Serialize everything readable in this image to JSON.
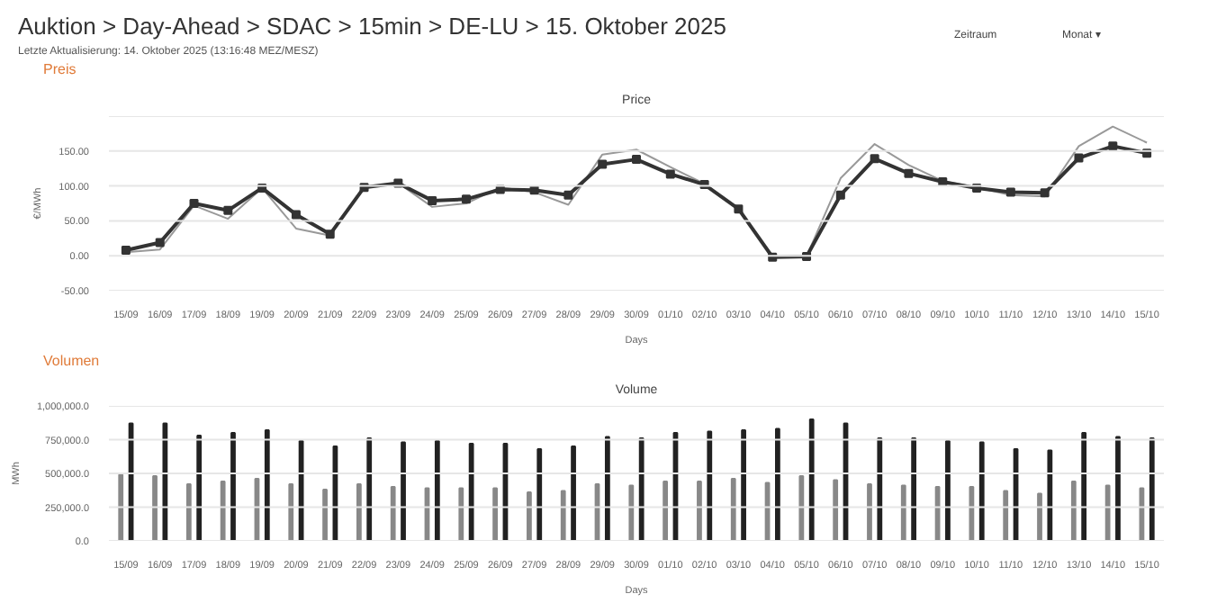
{
  "chart_data": [
    {
      "type": "other",
      "title": "Auktion > Day-Ahead > SDAC > 15min > DE-LU > 15. Oktober 2025",
      "subtitle": "Letzte Aktualisierung: 14. Oktober 2025 (13:16:48 MEZ/MESZ)",
      "annotations": [
        "Zeitraum",
        "Monat ▾"
      ]
    },
    {
      "type": "line",
      "title": "Price",
      "annotations": [
        "Preis"
      ],
      "xlabel": "Days",
      "ylabel": "€/MWh",
      "grid": "y",
      "categories": [
        "15/09",
        "16/09",
        "17/09",
        "18/09",
        "19/09",
        "20/09",
        "21/09",
        "22/09",
        "23/09",
        "24/09",
        "25/09",
        "26/09",
        "27/09",
        "28/09",
        "29/09",
        "30/09",
        "01/10",
        "02/10",
        "03/10",
        "04/10",
        "05/10",
        "06/10",
        "07/10",
        "08/10",
        "09/10",
        "10/10",
        "11/10",
        "12/10",
        "13/10",
        "14/10",
        "15/10"
      ],
      "ylim": [
        -50,
        200
      ],
      "yticks": [
        {
          "value": -50,
          "label": "-50.00"
        },
        {
          "value": 0,
          "label": "0.00"
        },
        {
          "value": 50,
          "label": "50.00"
        },
        {
          "value": 100,
          "label": "100.00"
        },
        {
          "value": 150,
          "label": "150.00"
        },
        {
          "value": 200,
          "label": null
        }
      ],
      "series": [
        {
          "color": "#999999",
          "marker": "none",
          "values": [
            5,
            9,
            72,
            53,
            97,
            39,
            29,
            98,
            104,
            70,
            75,
            98,
            91,
            73,
            145,
            152,
            127,
            103,
            67,
            -2,
            -1,
            111,
            160,
            130,
            107,
            98,
            87,
            85,
            157,
            185,
            162
          ]
        },
        {
          "color": "#333333",
          "marker": "square",
          "values": [
            8,
            19,
            75,
            65,
            97,
            59,
            31,
            98,
            104,
            79,
            81,
            95,
            94,
            87,
            131,
            138,
            117,
            102,
            67,
            -2,
            -1,
            87,
            139,
            118,
            106,
            97,
            91,
            90,
            140,
            157,
            147
          ]
        }
      ]
    },
    {
      "type": "bar",
      "title": "Volume",
      "annotations": [
        "Volumen"
      ],
      "xlabel": "Days",
      "ylabel": "MWh",
      "grid": "y",
      "categories": [
        "15/09",
        "16/09",
        "17/09",
        "18/09",
        "19/09",
        "20/09",
        "21/09",
        "22/09",
        "23/09",
        "24/09",
        "25/09",
        "26/09",
        "27/09",
        "28/09",
        "29/09",
        "30/09",
        "01/10",
        "02/10",
        "03/10",
        "04/10",
        "05/10",
        "06/10",
        "07/10",
        "08/10",
        "09/10",
        "10/10",
        "11/10",
        "12/10",
        "13/10",
        "14/10",
        "15/10"
      ],
      "ylim": [
        0,
        1000000
      ],
      "yticks": [
        {
          "value": 0,
          "label": "0.0"
        },
        {
          "value": 250000,
          "label": "250,000.0"
        },
        {
          "value": 500000,
          "label": "500,000.0"
        },
        {
          "value": 750000,
          "label": "750,000.0"
        },
        {
          "value": 1000000,
          "label": "1,000,000.0"
        }
      ],
      "series": [
        {
          "color": "#888888",
          "values": [
            490000,
            480000,
            420000,
            440000,
            460000,
            420000,
            380000,
            420000,
            400000,
            390000,
            390000,
            390000,
            360000,
            370000,
            420000,
            410000,
            440000,
            440000,
            460000,
            430000,
            480000,
            450000,
            420000,
            410000,
            400000,
            400000,
            370000,
            350000,
            440000,
            410000,
            390000
          ]
        },
        {
          "color": "#222222",
          "values": [
            870000,
            870000,
            780000,
            800000,
            820000,
            740000,
            700000,
            760000,
            730000,
            740000,
            720000,
            720000,
            680000,
            700000,
            770000,
            760000,
            800000,
            810000,
            820000,
            830000,
            900000,
            870000,
            760000,
            760000,
            740000,
            730000,
            680000,
            670000,
            800000,
            770000,
            760000
          ]
        }
      ]
    }
  ]
}
